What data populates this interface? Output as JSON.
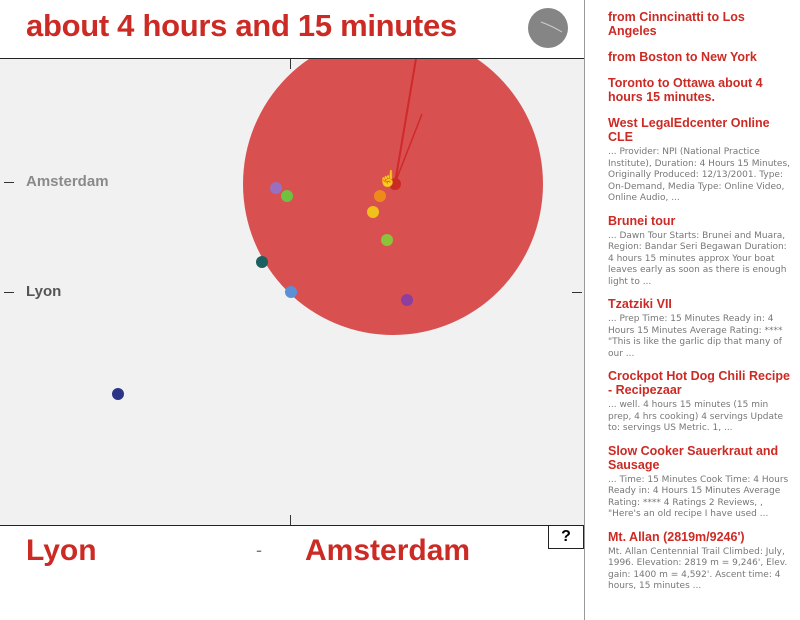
{
  "query_text": "about 4 hours and 15 minutes",
  "plot": {
    "y_labels": [
      {
        "label": "Amsterdam",
        "color": "#8a8a8a"
      },
      {
        "label": "Lyon",
        "color": "#555555"
      }
    ],
    "dots": [
      {
        "color": "#9b6fbf"
      },
      {
        "color": "#6dc242"
      },
      {
        "color": "#ee8a1a"
      },
      {
        "color": "#f2c01a"
      },
      {
        "color": "#8bc43a"
      },
      {
        "color": "#cc2a24"
      },
      {
        "color": "#1d5e5e"
      },
      {
        "color": "#5b8fd6"
      },
      {
        "color": "#8e3e9f"
      },
      {
        "color": "#2b3585"
      }
    ]
  },
  "bottom": {
    "from": "Lyon",
    "separator": "-",
    "to": "Amsterdam",
    "help": "?"
  },
  "sidebar": {
    "links": [
      "from Cinncinatti to Los Angeles",
      "from Boston to New York",
      "Toronto to Ottawa about 4 hours 15 minutes."
    ],
    "results": [
      {
        "title": "West LegalEdcenter Online CLE",
        "snippet": "... Provider: NPI (National Practice Institute), Duration: 4 Hours 15 Minutes, Originally Produced: 12/13/2001. Type: On-Demand, Media Type: Online Video, Online Audio, ..."
      },
      {
        "title": "Brunei tour",
        "snippet": "... Dawn Tour Starts: Brunei and Muara, Region: Bandar Seri Begawan Duration: 4 hours 15 minutes approx Your boat leaves early as soon as there is enough light to ..."
      },
      {
        "title": "Tzatziki VII",
        "snippet": "... Prep Time: 15 Minutes Ready in: 4 Hours 15 Minutes Average Rating: **** \"This is like the garlic dip that many of our ..."
      },
      {
        "title": "Crockpot Hot Dog Chili Recipe - Recipezaar",
        "snippet": "... well. 4 hours 15 minutes (15 min prep, 4 hrs cooking) 4 servings Update to: servings US Metric. 1, ..."
      },
      {
        "title": "Slow Cooker Sauerkraut and Sausage",
        "snippet": "... Time: 15 Minutes Cook Time: 4 Hours Ready in: 4 Hours 15 Minutes Average Rating: **** 4 Ratings 2 Reviews, , \"Here's an old recipe I have used ..."
      },
      {
        "title": "Mt. Allan (2819m/9246')",
        "snippet": "Mt. Allan Centennial Trail Climbed: July, 1996. Elevation: 2819 m = 9,246', Elev. gain: 1400 m = 4,592'. Ascent time: 4 hours, 15 minutes ..."
      }
    ]
  }
}
